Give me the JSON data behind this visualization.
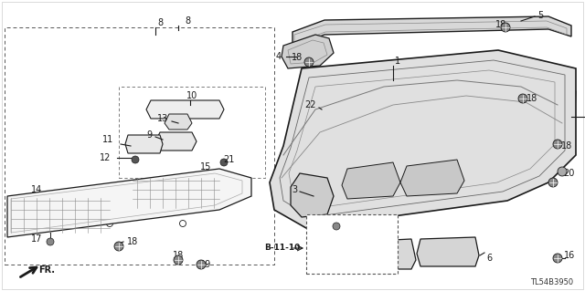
{
  "bg_color": "#ffffff",
  "line_color": "#1a1a1a",
  "diagram_code": "TL54B3950",
  "fig_width": 6.4,
  "fig_height": 3.19,
  "dpi": 100
}
